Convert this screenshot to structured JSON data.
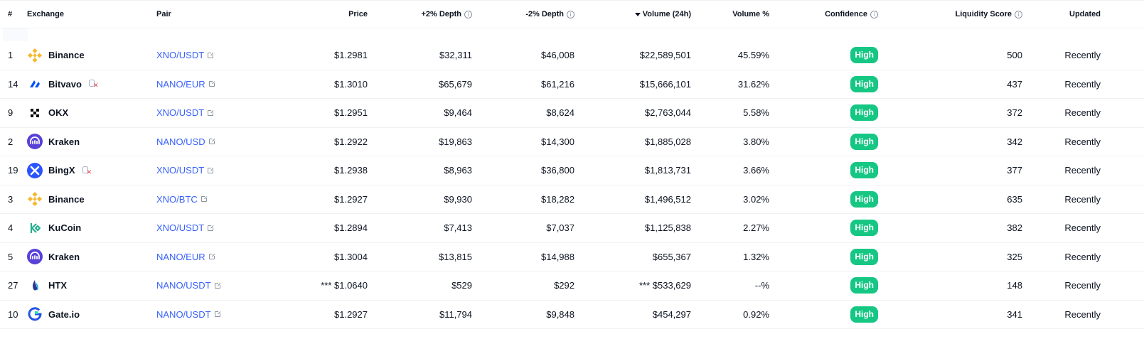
{
  "columns": {
    "rank": "#",
    "exchange": "Exchange",
    "pair": "Pair",
    "price": "Price",
    "plus_depth": "+2% Depth",
    "minus_depth": "-2% Depth",
    "volume": "Volume (24h)",
    "volume_pct": "Volume %",
    "confidence": "Confidence",
    "liquidity": "Liquidity Score",
    "updated": "Updated"
  },
  "sort": {
    "column": "volume",
    "direction": "descending"
  },
  "colors": {
    "link": "#3861fb",
    "badge": "#16c784",
    "warning": "#ea3943"
  },
  "rows": [
    {
      "rank": "1",
      "exchange": "Binance",
      "logo": "binance-logo",
      "warning": false,
      "pair": "XNO/USDT",
      "price": "$1.2981",
      "plus_depth": "$32,311",
      "minus_depth": "$46,008",
      "volume": "$22,589,501",
      "volume_pct": "45.59%",
      "confidence": "High",
      "liquidity": "500",
      "updated": "Recently"
    },
    {
      "rank": "14",
      "exchange": "Bitvavo",
      "logo": "bitvavo-logo",
      "warning": true,
      "pair": "NANO/EUR",
      "price": "$1.3010",
      "plus_depth": "$65,679",
      "minus_depth": "$61,216",
      "volume": "$15,666,101",
      "volume_pct": "31.62%",
      "confidence": "High",
      "liquidity": "437",
      "updated": "Recently"
    },
    {
      "rank": "9",
      "exchange": "OKX",
      "logo": "okx-logo",
      "warning": false,
      "pair": "XNO/USDT",
      "price": "$1.2951",
      "plus_depth": "$9,464",
      "minus_depth": "$8,624",
      "volume": "$2,763,044",
      "volume_pct": "5.58%",
      "confidence": "High",
      "liquidity": "372",
      "updated": "Recently"
    },
    {
      "rank": "2",
      "exchange": "Kraken",
      "logo": "kraken-logo",
      "warning": false,
      "pair": "NANO/USD",
      "price": "$1.2922",
      "plus_depth": "$19,863",
      "minus_depth": "$14,300",
      "volume": "$1,885,028",
      "volume_pct": "3.80%",
      "confidence": "High",
      "liquidity": "342",
      "updated": "Recently"
    },
    {
      "rank": "19",
      "exchange": "BingX",
      "logo": "bingx-logo",
      "warning": true,
      "pair": "XNO/USDT",
      "price": "$1.2938",
      "plus_depth": "$8,963",
      "minus_depth": "$36,800",
      "volume": "$1,813,731",
      "volume_pct": "3.66%",
      "confidence": "High",
      "liquidity": "377",
      "updated": "Recently"
    },
    {
      "rank": "3",
      "exchange": "Binance",
      "logo": "binance-logo",
      "warning": false,
      "pair": "XNO/BTC",
      "price": "$1.2927",
      "plus_depth": "$9,930",
      "minus_depth": "$18,282",
      "volume": "$1,496,512",
      "volume_pct": "3.02%",
      "confidence": "High",
      "liquidity": "635",
      "updated": "Recently"
    },
    {
      "rank": "4",
      "exchange": "KuCoin",
      "logo": "kucoin-logo",
      "warning": false,
      "pair": "XNO/USDT",
      "price": "$1.2894",
      "plus_depth": "$7,413",
      "minus_depth": "$7,037",
      "volume": "$1,125,838",
      "volume_pct": "2.27%",
      "confidence": "High",
      "liquidity": "382",
      "updated": "Recently"
    },
    {
      "rank": "5",
      "exchange": "Kraken",
      "logo": "kraken-logo",
      "warning": false,
      "pair": "NANO/EUR",
      "price": "$1.3004",
      "plus_depth": "$13,815",
      "minus_depth": "$14,988",
      "volume": "$655,367",
      "volume_pct": "1.32%",
      "confidence": "High",
      "liquidity": "325",
      "updated": "Recently"
    },
    {
      "rank": "27",
      "exchange": "HTX",
      "logo": "htx-logo",
      "warning": false,
      "pair": "NANO/USDT",
      "price": "*** $1.0640",
      "plus_depth": "$529",
      "minus_depth": "$292",
      "volume": "*** $533,629",
      "volume_pct": "--%",
      "confidence": "High",
      "liquidity": "148",
      "updated": "Recently"
    },
    {
      "rank": "10",
      "exchange": "Gate.io",
      "logo": "gateio-logo",
      "warning": false,
      "pair": "NANO/USDT",
      "price": "$1.2927",
      "plus_depth": "$11,794",
      "minus_depth": "$9,848",
      "volume": "$454,297",
      "volume_pct": "0.92%",
      "confidence": "High",
      "liquidity": "341",
      "updated": "Recently"
    }
  ]
}
